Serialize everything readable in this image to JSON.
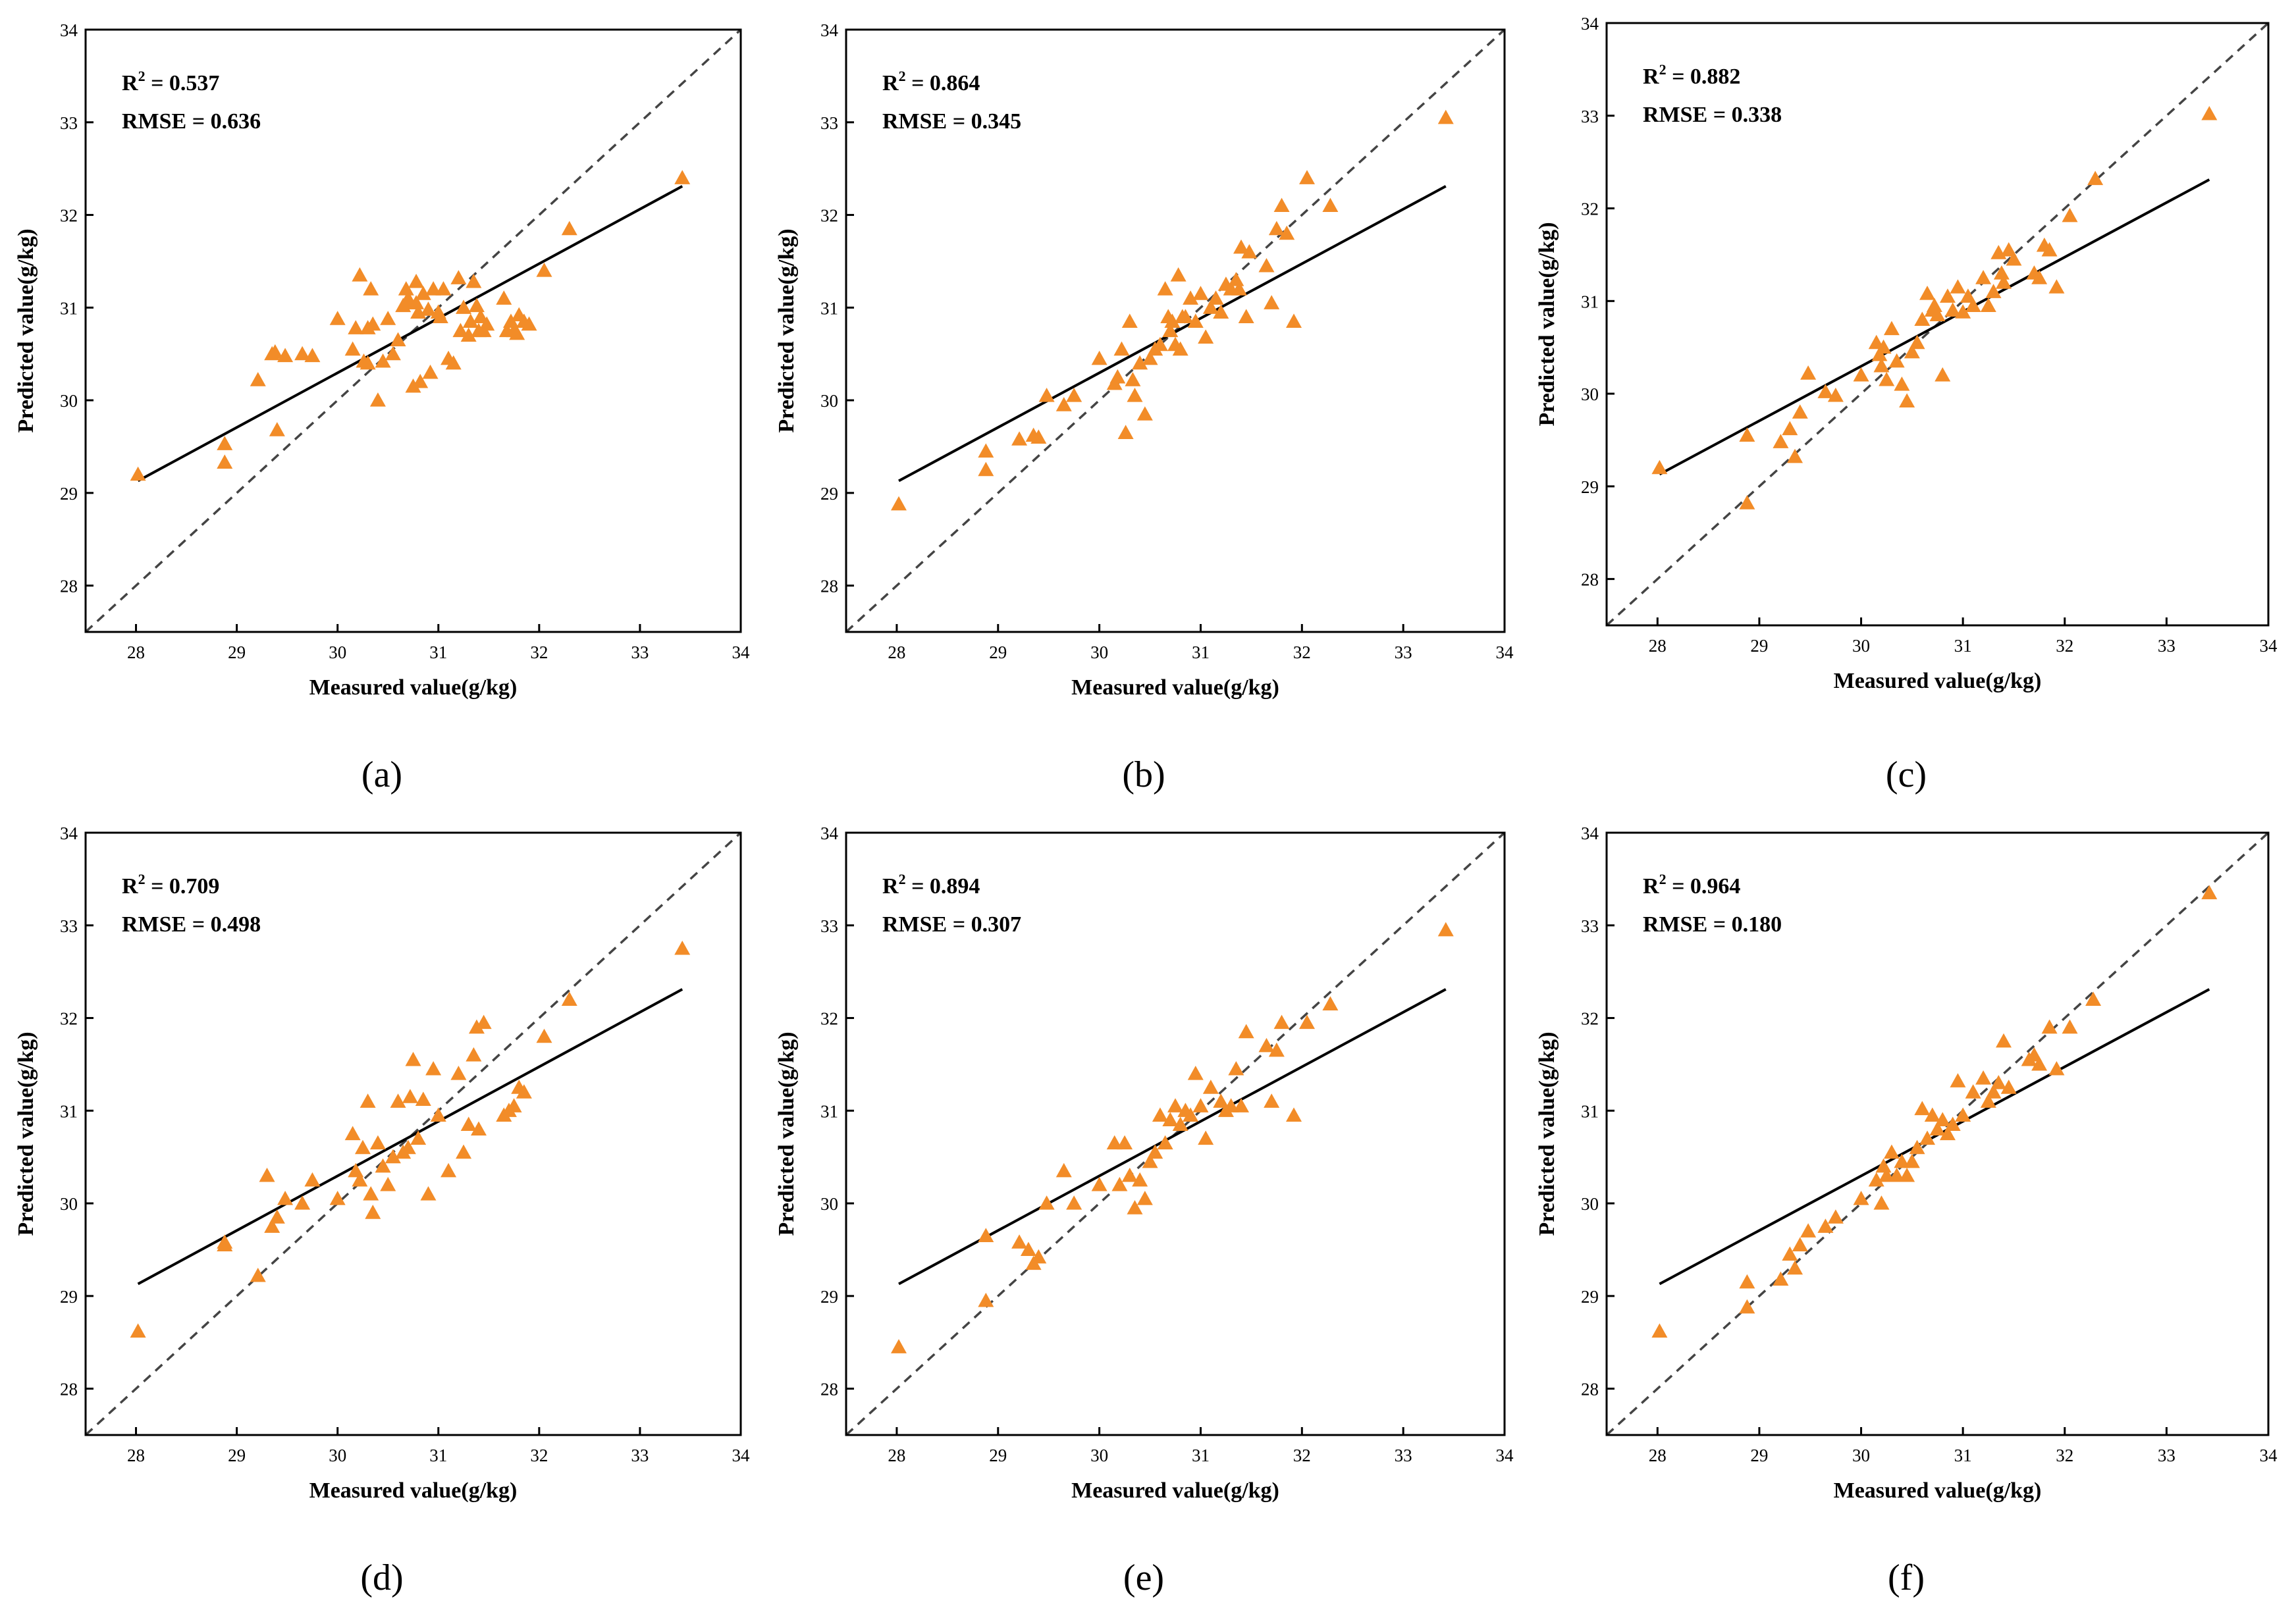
{
  "chart_data": [
    {
      "type": "scatter",
      "panel_label": "(a)",
      "xlabel": "Measured value(g/kg)",
      "ylabel": "Predicted value(g/kg)",
      "xlim": [
        27.5,
        34
      ],
      "ylim": [
        27.5,
        34
      ],
      "xticks": [
        28,
        29,
        30,
        31,
        32,
        33,
        34
      ],
      "yticks": [
        28,
        29,
        30,
        31,
        32,
        33,
        34
      ],
      "r2_prefix": "R",
      "r2_sup": "2",
      "r2_text": " = 0.537",
      "rmse_text": "RMSE = 0.636",
      "marker_color": "#f28c28",
      "reference_line": "1:1 dashed",
      "fit_line": {
        "x": [
          28.02,
          33.42
        ],
        "y": [
          29.13,
          32.31
        ]
      },
      "x": [
        28.02,
        28.88,
        28.88,
        29.21,
        29.35,
        29.4,
        29.38,
        29.48,
        29.65,
        29.75,
        30,
        30.15,
        30.18,
        30.22,
        30.26,
        30.3,
        30.3,
        30.33,
        30.35,
        30.4,
        30.45,
        30.5,
        30.55,
        30.6,
        30.65,
        30.68,
        30.7,
        30.72,
        30.75,
        30.78,
        30.78,
        30.8,
        30.82,
        30.85,
        30.9,
        30.92,
        30.95,
        31,
        31.02,
        31.05,
        31.1,
        31.15,
        31.2,
        31.22,
        31.25,
        31.3,
        31.32,
        31.35,
        31.38,
        31.4,
        31.42,
        31.45,
        31.48,
        31.65,
        31.68,
        31.72,
        31.75,
        31.78,
        31.8,
        31.85,
        31.9,
        32.05,
        32.3,
        33.42
      ],
      "y": [
        29.2,
        29.53,
        29.33,
        30.22,
        30.5,
        29.68,
        30.52,
        30.48,
        30.5,
        30.48,
        30.88,
        30.55,
        30.78,
        31.35,
        30.42,
        30.78,
        30.4,
        31.2,
        30.82,
        30,
        30.42,
        30.88,
        30.5,
        30.65,
        31.02,
        31.2,
        31.1,
        31.05,
        30.15,
        31.28,
        31.05,
        30.95,
        30.2,
        31.15,
        30.98,
        30.3,
        31.2,
        30.95,
        30.9,
        31.2,
        30.45,
        30.4,
        31.32,
        30.75,
        31,
        30.7,
        30.85,
        31.28,
        31.02,
        30.75,
        30.9,
        30.75,
        30.82,
        31.1,
        30.75,
        30.85,
        30.75,
        30.72,
        30.92,
        30.85,
        30.82,
        31.4,
        31.85,
        32.4
      ]
    },
    {
      "type": "scatter",
      "panel_label": "(b)",
      "xlabel": "Measured value(g/kg)",
      "ylabel": "Predicted value(g/kg)",
      "xlim": [
        27.5,
        34
      ],
      "ylim": [
        27.5,
        34
      ],
      "xticks": [
        28,
        29,
        30,
        31,
        32,
        33,
        34
      ],
      "yticks": [
        28,
        29,
        30,
        31,
        32,
        33,
        34
      ],
      "r2_prefix": "R",
      "r2_sup": "2",
      "r2_text": " = 0.864",
      "rmse_text": "RMSE = 0.345",
      "marker_color": "#f28c28",
      "reference_line": "1:1 dashed",
      "fit_line": {
        "x": [
          28.02,
          33.42
        ],
        "y": [
          29.13,
          32.31
        ]
      },
      "x": [
        28.02,
        28.88,
        28.88,
        29.21,
        29.35,
        29.4,
        29.48,
        29.65,
        29.75,
        30,
        30.15,
        30.18,
        30.22,
        30.26,
        30.3,
        30.33,
        30.35,
        30.4,
        30.45,
        30.5,
        30.55,
        30.6,
        30.65,
        30.68,
        30.7,
        30.72,
        30.75,
        30.78,
        30.8,
        30.82,
        30.85,
        30.9,
        30.95,
        31,
        31.05,
        31.1,
        31.15,
        31.2,
        31.25,
        31.3,
        31.35,
        31.38,
        31.4,
        31.45,
        31.48,
        31.65,
        31.7,
        31.75,
        31.8,
        31.85,
        31.92,
        32.05,
        32.28,
        33.42
      ],
      "y": [
        28.88,
        29.45,
        29.25,
        29.58,
        29.62,
        29.6,
        30.05,
        29.95,
        30.05,
        30.45,
        30.18,
        30.25,
        30.55,
        29.65,
        30.85,
        30.22,
        30.05,
        30.4,
        29.85,
        30.45,
        30.55,
        30.6,
        31.2,
        30.9,
        30.75,
        30.85,
        30.6,
        31.35,
        30.55,
        30.9,
        30.9,
        31.1,
        30.85,
        31.15,
        30.68,
        31,
        31.1,
        30.95,
        31.25,
        31.2,
        31.3,
        31.2,
        31.65,
        30.9,
        31.6,
        31.45,
        31.05,
        31.85,
        32.1,
        31.8,
        30.85,
        32.4,
        32.1,
        33.05
      ]
    },
    {
      "type": "scatter",
      "panel_label": "(c)",
      "xlabel": "Measured value(g/kg)",
      "ylabel": "Predicted value(g/kg)",
      "xlim": [
        27.5,
        34
      ],
      "ylim": [
        27.5,
        34
      ],
      "xticks": [
        28,
        29,
        30,
        31,
        32,
        33,
        34
      ],
      "yticks": [
        28,
        29,
        30,
        31,
        32,
        33,
        34
      ],
      "r2_prefix": "R",
      "r2_sup": "2",
      "r2_text": " = 0.882",
      "rmse_text": "RMSE = 0.338",
      "marker_color": "#f28c28",
      "reference_line": "1:1 dashed",
      "fit_line": {
        "x": [
          28.02,
          33.42
        ],
        "y": [
          29.13,
          32.31
        ]
      },
      "x": [
        28.02,
        28.88,
        28.88,
        29.21,
        29.3,
        29.35,
        29.4,
        29.48,
        29.65,
        29.75,
        30,
        30.15,
        30.18,
        30.2,
        30.22,
        30.25,
        30.3,
        30.35,
        30.4,
        30.45,
        30.5,
        30.55,
        30.6,
        30.65,
        30.7,
        30.72,
        30.75,
        30.8,
        30.85,
        30.9,
        30.95,
        31,
        31.05,
        31.1,
        31.2,
        31.25,
        31.3,
        31.35,
        31.38,
        31.4,
        31.45,
        31.5,
        31.7,
        31.75,
        31.8,
        31.85,
        31.92,
        32.05,
        32.3,
        33.42
      ],
      "y": [
        29.2,
        29.55,
        28.82,
        29.48,
        29.62,
        29.32,
        29.8,
        30.22,
        30.02,
        29.98,
        30.2,
        30.55,
        30.42,
        30.3,
        30.5,
        30.15,
        30.7,
        30.35,
        30.1,
        29.92,
        30.45,
        30.55,
        30.8,
        31.08,
        30.9,
        30.95,
        30.85,
        30.2,
        31.05,
        30.9,
        31.15,
        30.88,
        31.05,
        30.95,
        31.25,
        30.95,
        31.1,
        31.52,
        31.3,
        31.2,
        31.55,
        31.45,
        31.3,
        31.25,
        31.6,
        31.55,
        31.15,
        31.92,
        32.32,
        33.02
      ]
    },
    {
      "type": "scatter",
      "panel_label": "(d)",
      "xlabel": "Measured value(g/kg)",
      "ylabel": "Predicted value(g/kg)",
      "xlim": [
        27.5,
        34
      ],
      "ylim": [
        27.5,
        34
      ],
      "xticks": [
        28,
        29,
        30,
        31,
        32,
        33,
        34
      ],
      "yticks": [
        28,
        29,
        30,
        31,
        32,
        33,
        34
      ],
      "r2_prefix": "R",
      "r2_sup": "2",
      "r2_text": " = 0.709",
      "rmse_text": "RMSE = 0.498",
      "marker_color": "#f28c28",
      "reference_line": "1:1 dashed",
      "fit_line": {
        "x": [
          28.02,
          33.42
        ],
        "y": [
          29.13,
          32.31
        ]
      },
      "x": [
        28.02,
        28.88,
        28.88,
        29.21,
        29.3,
        29.35,
        29.4,
        29.48,
        29.65,
        29.75,
        30,
        30.15,
        30.18,
        30.22,
        30.25,
        30.3,
        30.33,
        30.35,
        30.4,
        30.45,
        30.5,
        30.55,
        30.6,
        30.65,
        30.7,
        30.72,
        30.75,
        30.8,
        30.85,
        30.9,
        30.95,
        31,
        31.1,
        31.2,
        31.25,
        31.3,
        31.35,
        31.38,
        31.4,
        31.45,
        31.65,
        31.7,
        31.75,
        31.8,
        31.85,
        32.05,
        32.3,
        33.42
      ],
      "y": [
        28.62,
        29.58,
        29.55,
        29.22,
        30.3,
        29.75,
        29.85,
        30.05,
        30,
        30.25,
        30.05,
        30.75,
        30.35,
        30.25,
        30.6,
        31.1,
        30.1,
        29.9,
        30.65,
        30.4,
        30.2,
        30.5,
        31.1,
        30.55,
        30.6,
        31.15,
        31.55,
        30.7,
        31.12,
        30.1,
        31.45,
        30.95,
        30.35,
        31.4,
        30.55,
        30.85,
        31.6,
        31.9,
        30.8,
        31.95,
        30.95,
        31,
        31.05,
        31.25,
        31.2,
        31.8,
        32.2,
        32.75
      ]
    },
    {
      "type": "scatter",
      "panel_label": "(e)",
      "xlabel": "Measured value(g/kg)",
      "ylabel": "Predicted value(g/kg)",
      "xlim": [
        27.5,
        34
      ],
      "ylim": [
        27.5,
        34
      ],
      "xticks": [
        28,
        29,
        30,
        31,
        32,
        33,
        34
      ],
      "yticks": [
        28,
        29,
        30,
        31,
        32,
        33,
        34
      ],
      "r2_prefix": "R",
      "r2_sup": "2",
      "r2_text": " = 0.894",
      "rmse_text": "RMSE = 0.307",
      "marker_color": "#f28c28",
      "reference_line": "1:1 dashed",
      "fit_line": {
        "x": [
          28.02,
          33.42
        ],
        "y": [
          29.13,
          32.31
        ]
      },
      "x": [
        28.02,
        28.88,
        28.88,
        29.21,
        29.3,
        29.35,
        29.4,
        29.48,
        29.65,
        29.75,
        30,
        30.15,
        30.2,
        30.25,
        30.3,
        30.35,
        30.4,
        30.45,
        30.5,
        30.55,
        30.6,
        30.65,
        30.7,
        30.75,
        30.8,
        30.85,
        30.9,
        30.95,
        31,
        31.05,
        31.1,
        31.2,
        31.25,
        31.3,
        31.35,
        31.4,
        31.45,
        31.65,
        31.7,
        31.75,
        31.8,
        31.92,
        32.05,
        32.28,
        33.42
      ],
      "y": [
        28.45,
        29.65,
        28.95,
        29.58,
        29.5,
        29.35,
        29.42,
        30,
        30.35,
        30,
        30.2,
        30.65,
        30.2,
        30.65,
        30.3,
        29.95,
        30.25,
        30.05,
        30.45,
        30.55,
        30.95,
        30.65,
        30.9,
        31.05,
        30.85,
        31,
        30.95,
        31.4,
        31.05,
        30.7,
        31.25,
        31.1,
        31,
        31.05,
        31.45,
        31.05,
        31.85,
        31.7,
        31.1,
        31.65,
        31.95,
        30.95,
        31.95,
        32.15,
        32.95
      ]
    },
    {
      "type": "scatter",
      "panel_label": "(f)",
      "xlabel": "Measured value(g/kg)",
      "ylabel": "Predicted value(g/kg)",
      "xlim": [
        27.5,
        34
      ],
      "ylim": [
        27.5,
        34
      ],
      "xticks": [
        28,
        29,
        30,
        31,
        32,
        33,
        34
      ],
      "yticks": [
        28,
        29,
        30,
        31,
        32,
        33,
        34
      ],
      "r2_prefix": "R",
      "r2_sup": "2",
      "r2_text": " = 0.964",
      "rmse_text": "RMSE = 0.180",
      "marker_color": "#f28c28",
      "reference_line": "1:1 dashed",
      "fit_line": {
        "x": [
          28.02,
          33.42
        ],
        "y": [
          29.13,
          32.31
        ]
      },
      "x": [
        28.02,
        28.88,
        28.88,
        29.21,
        29.3,
        29.35,
        29.4,
        29.48,
        29.65,
        29.75,
        30,
        30.15,
        30.2,
        30.22,
        30.25,
        30.3,
        30.35,
        30.4,
        30.45,
        30.5,
        30.55,
        30.6,
        30.65,
        30.7,
        30.75,
        30.8,
        30.85,
        30.9,
        30.95,
        31,
        31.1,
        31.2,
        31.25,
        31.3,
        31.35,
        31.4,
        31.45,
        31.65,
        31.7,
        31.75,
        31.85,
        31.92,
        32.05,
        32.28,
        33.42
      ],
      "y": [
        28.62,
        29.15,
        28.88,
        29.18,
        29.45,
        29.3,
        29.55,
        29.7,
        29.75,
        29.85,
        30.05,
        30.25,
        30.0,
        30.4,
        30.3,
        30.55,
        30.3,
        30.45,
        30.3,
        30.45,
        30.6,
        31.02,
        30.7,
        30.95,
        30.8,
        30.9,
        30.75,
        30.85,
        31.32,
        30.95,
        31.2,
        31.35,
        31.1,
        31.2,
        31.3,
        31.75,
        31.25,
        31.55,
        31.6,
        31.5,
        31.9,
        31.45,
        31.9,
        32.2,
        33.35
      ]
    }
  ]
}
